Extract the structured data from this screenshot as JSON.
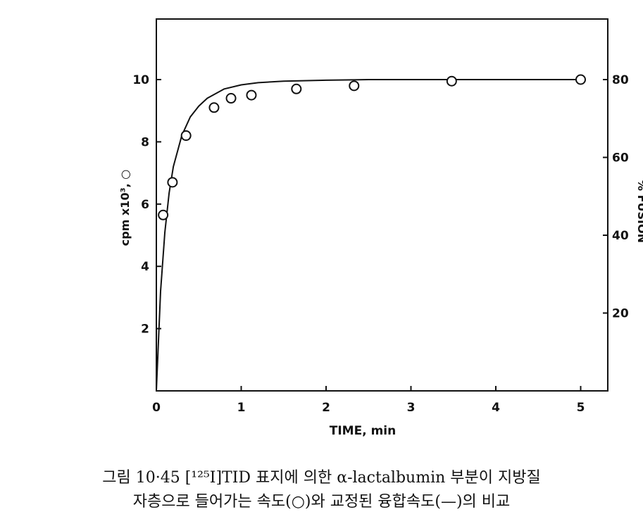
{
  "figure": {
    "caption_line1": "그림 10·45  [¹²⁵I]TID 표지에 의한 α-lactalbumin 부분이 지방질",
    "caption_line2": "자층으로 들어가는 속도(○)와 교정된 융합속도(—)의 비교"
  },
  "chart_data": {
    "type": "scatter",
    "title": "",
    "xlabel": "TIME, min",
    "ylabel": "cpm x10³, ○",
    "y2label": "% FUSION",
    "xlim": [
      0,
      5
    ],
    "ylim": [
      0,
      10
    ],
    "y2lim": [
      0,
      80
    ],
    "xticks": [
      "0",
      "1",
      "2",
      "3",
      "4",
      "5"
    ],
    "yticks": [
      "2",
      "4",
      "6",
      "8",
      "10"
    ],
    "y2ticks": [
      "20",
      "40",
      "60",
      "80"
    ],
    "grid": false,
    "legend": "none",
    "series": [
      {
        "marker": "open-circle",
        "x": [
          0.08,
          0.19,
          0.35,
          0.68,
          0.88,
          1.12,
          1.65,
          2.33,
          3.48,
          5.0
        ],
        "y": [
          5.65,
          6.7,
          8.2,
          9.1,
          9.4,
          9.5,
          9.7,
          9.8,
          9.95,
          10.0
        ]
      },
      {
        "marker": "line",
        "x": [
          0.0,
          0.05,
          0.1,
          0.15,
          0.2,
          0.3,
          0.4,
          0.5,
          0.6,
          0.8,
          1.0,
          1.2,
          1.5,
          2.0,
          2.5,
          3.0,
          4.0,
          5.0
        ],
        "y": [
          0.0,
          3.2,
          5.1,
          6.35,
          7.2,
          8.2,
          8.8,
          9.15,
          9.4,
          9.7,
          9.83,
          9.9,
          9.95,
          9.98,
          10.0,
          10.0,
          10.0,
          10.0
        ]
      }
    ]
  }
}
